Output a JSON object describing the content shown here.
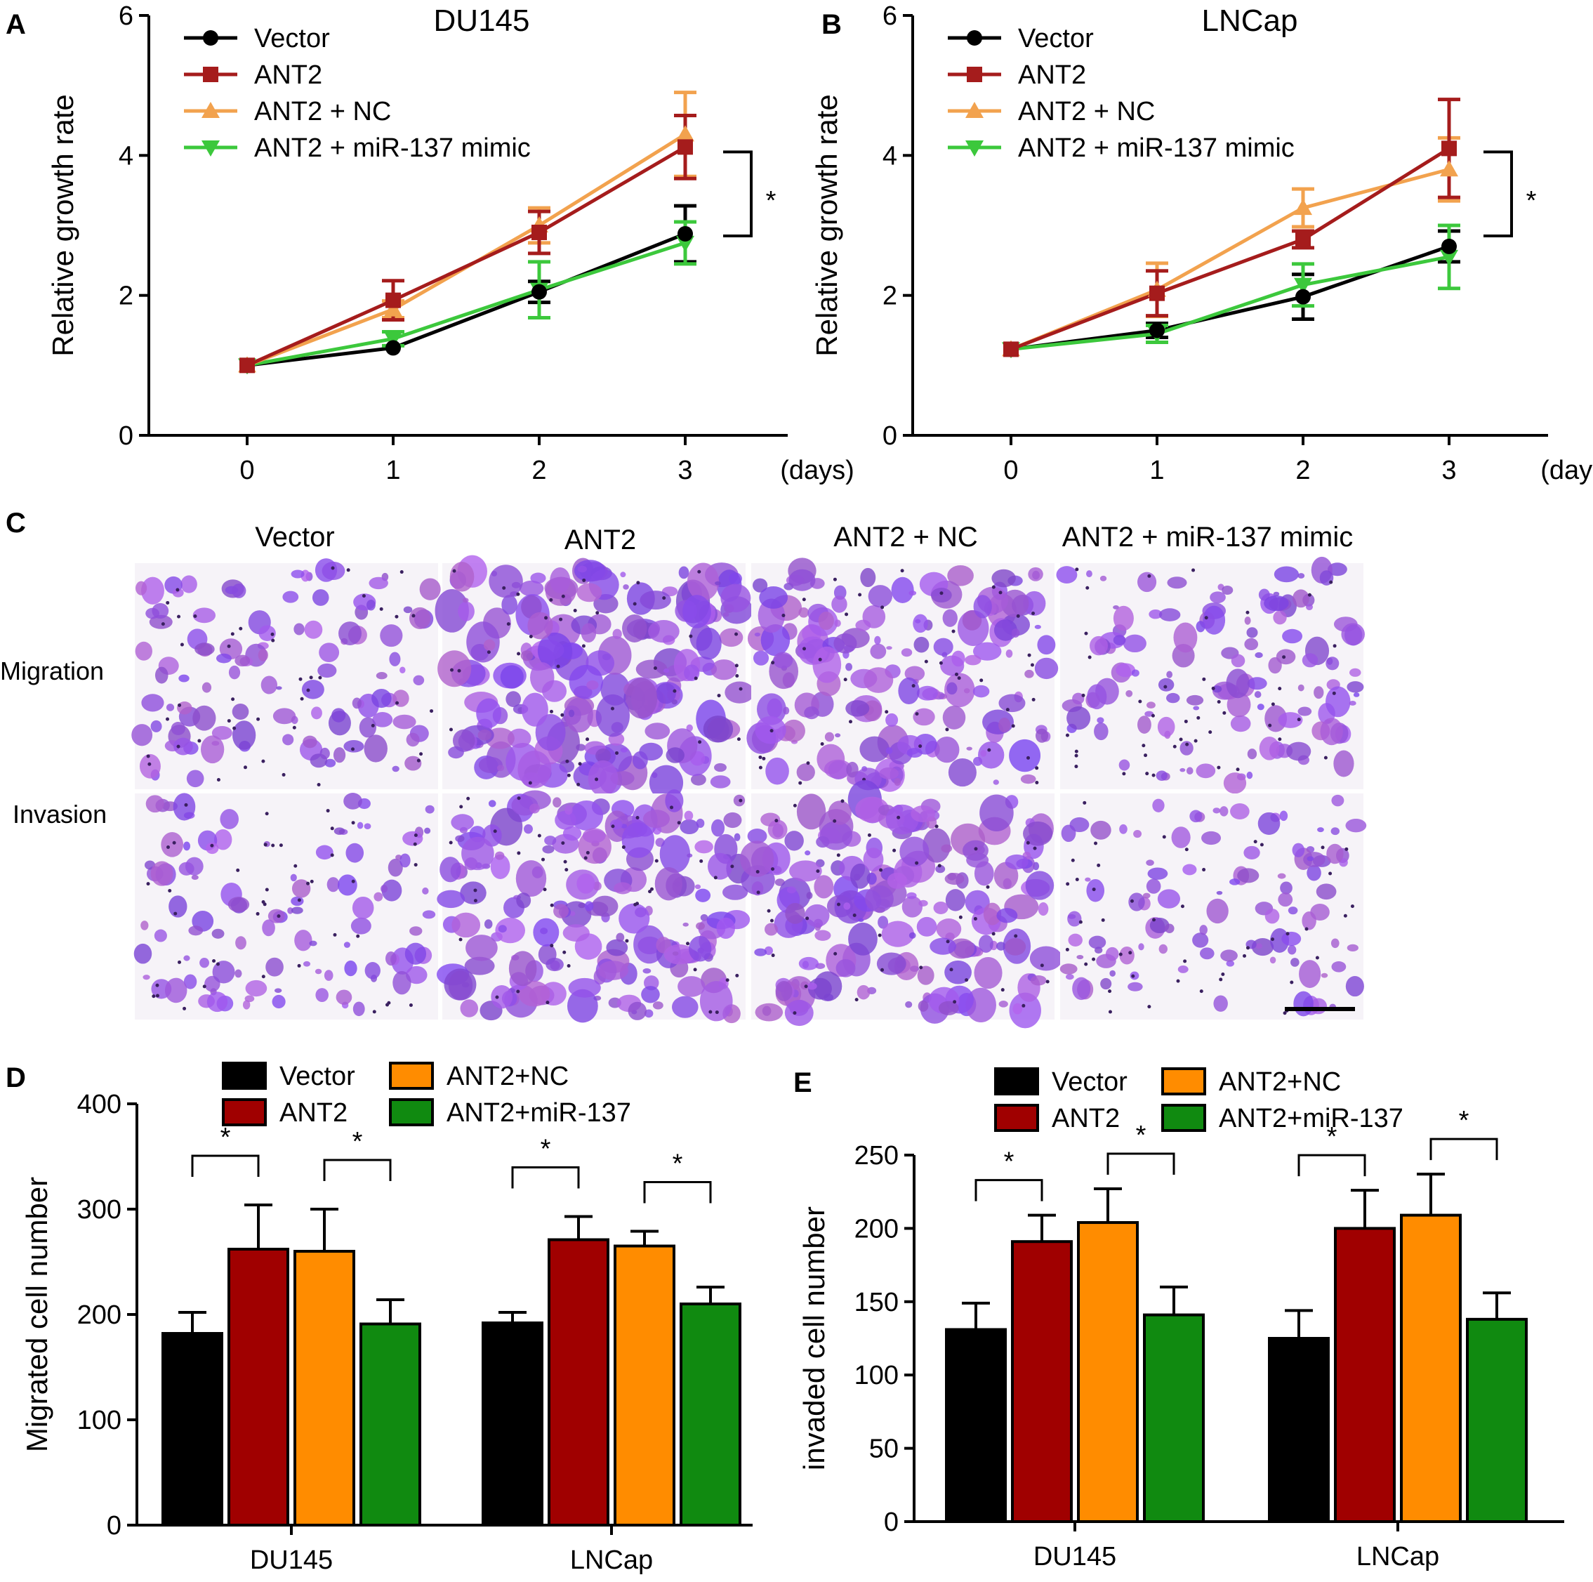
{
  "panels": {
    "A": "A",
    "B": "B",
    "C": "C",
    "D": "D",
    "E": "E"
  },
  "colors": {
    "vector": "#000000",
    "ant2_line": "#a51c1c",
    "ant2_nc_line": "#f2a24e",
    "mimic_line": "#3cc83c",
    "ant2_bar": "#a00000",
    "ant2_nc_bar": "#ff8c00",
    "mimic_bar": "#108a10"
  },
  "microscopy": {
    "columns": [
      "Vector",
      "ANT2",
      "ANT2 + NC",
      "ANT2 + miR-137 mimic"
    ],
    "rows": [
      "Migration",
      "Invasion"
    ],
    "stain_color": "#8b4fc9"
  },
  "chart_data": [
    {
      "id": "A",
      "type": "line",
      "title": "DU145",
      "ylabel": "Relative growth rate",
      "xlabel": "(days)",
      "x": [
        0,
        1,
        2,
        3
      ],
      "xticks": [
        "0",
        "1",
        "2",
        "3"
      ],
      "yticks": [
        "0",
        "2",
        "4",
        "6"
      ],
      "ylim": [
        0,
        6
      ],
      "significance": "*",
      "series": [
        {
          "name": "Vector",
          "marker": "circle",
          "values": [
            1.0,
            1.25,
            2.05,
            2.88
          ],
          "err": [
            0.02,
            0.05,
            0.15,
            0.4
          ]
        },
        {
          "name": "ANT2",
          "marker": "square",
          "values": [
            1.0,
            1.93,
            2.9,
            4.12
          ],
          "err": [
            0.02,
            0.28,
            0.3,
            0.45
          ]
        },
        {
          "name": "ANT2 + NC",
          "marker": "triangle-up",
          "values": [
            1.0,
            1.8,
            3.0,
            4.3
          ],
          "err": [
            0.02,
            0.12,
            0.25,
            0.6
          ]
        },
        {
          "name": "ANT2 + miR-137 mimic",
          "marker": "triangle-down",
          "values": [
            1.0,
            1.38,
            2.08,
            2.75
          ],
          "err": [
            0.02,
            0.1,
            0.4,
            0.3
          ]
        }
      ]
    },
    {
      "id": "B",
      "type": "line",
      "title": "LNCap",
      "ylabel": "Relative growth rate",
      "xlabel": "(days)",
      "x": [
        0,
        1,
        2,
        3
      ],
      "xticks": [
        "0",
        "1",
        "2",
        "3"
      ],
      "yticks": [
        "0",
        "2",
        "4",
        "6"
      ],
      "ylim": [
        0,
        6
      ],
      "significance": "*",
      "series": [
        {
          "name": "Vector",
          "marker": "circle",
          "values": [
            1.23,
            1.5,
            1.98,
            2.7
          ],
          "err": [
            0.02,
            0.1,
            0.32,
            0.22
          ]
        },
        {
          "name": "ANT2",
          "marker": "square",
          "values": [
            1.23,
            2.03,
            2.8,
            4.1
          ],
          "err": [
            0.02,
            0.32,
            0.12,
            0.7
          ]
        },
        {
          "name": "ANT2 + NC",
          "marker": "triangle-up",
          "values": [
            1.23,
            2.08,
            3.25,
            3.8
          ],
          "err": [
            0.02,
            0.38,
            0.27,
            0.45
          ]
        },
        {
          "name": "ANT2 + miR-137 mimic",
          "marker": "triangle-down",
          "values": [
            1.23,
            1.45,
            2.15,
            2.55
          ],
          "err": [
            0.02,
            0.12,
            0.3,
            0.45
          ]
        }
      ]
    },
    {
      "id": "D",
      "type": "bar",
      "ylabel": "Migrated cell number",
      "categories": [
        "DU145",
        "LNCap"
      ],
      "yticks": [
        "0",
        "100",
        "200",
        "300",
        "400"
      ],
      "ylim": [
        0,
        400
      ],
      "legend": [
        "Vector",
        "ANT2",
        "ANT2+NC",
        "ANT2+miR-137"
      ],
      "significance": "*",
      "series": [
        {
          "name": "Vector",
          "values": [
            182,
            192
          ],
          "err": [
            20,
            10
          ]
        },
        {
          "name": "ANT2",
          "values": [
            262,
            271
          ],
          "err": [
            42,
            22
          ]
        },
        {
          "name": "ANT2+NC",
          "values": [
            260,
            265
          ],
          "err": [
            40,
            14
          ]
        },
        {
          "name": "ANT2+miR-137",
          "values": [
            191,
            210
          ],
          "err": [
            23,
            16
          ]
        }
      ]
    },
    {
      "id": "E",
      "type": "bar",
      "ylabel": "invaded cell number",
      "categories": [
        "DU145",
        "LNCap"
      ],
      "yticks": [
        "0",
        "50",
        "100",
        "150",
        "200",
        "250"
      ],
      "ylim": [
        0,
        250
      ],
      "legend": [
        "Vector",
        "ANT2",
        "ANT2+NC",
        "ANT2+miR-137"
      ],
      "significance": "*",
      "series": [
        {
          "name": "Vector",
          "values": [
            131,
            125
          ],
          "err": [
            18,
            19
          ]
        },
        {
          "name": "ANT2",
          "values": [
            191,
            200
          ],
          "err": [
            18,
            26
          ]
        },
        {
          "name": "ANT2+NC",
          "values": [
            204,
            209
          ],
          "err": [
            23,
            28
          ]
        },
        {
          "name": "ANT2+miR-137",
          "values": [
            141,
            138
          ],
          "err": [
            19,
            18
          ]
        }
      ]
    }
  ]
}
